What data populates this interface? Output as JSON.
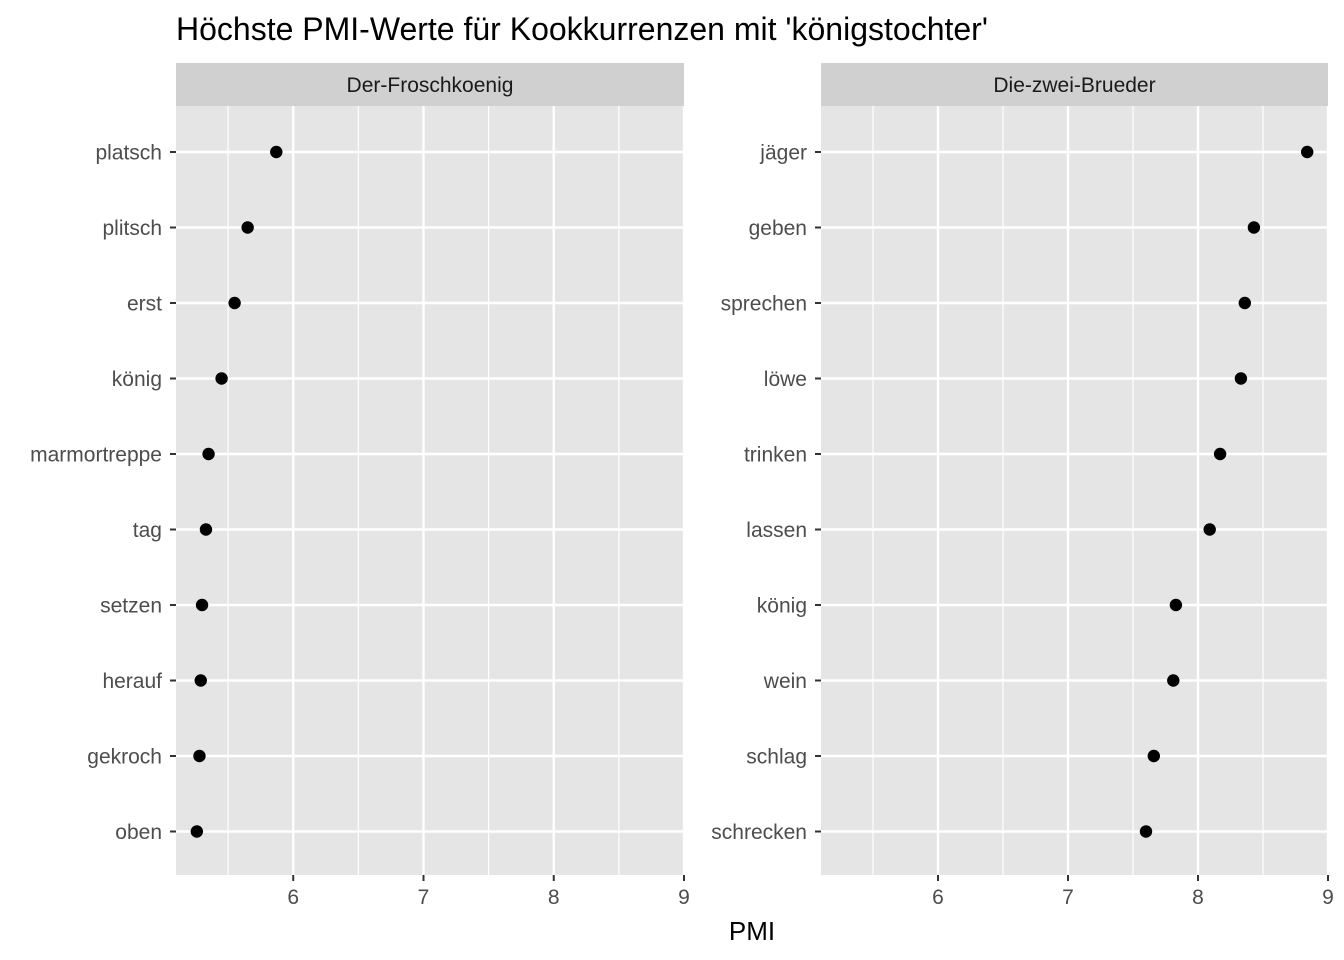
{
  "chart_data": {
    "type": "scatter",
    "title": "Höchste PMI-Werte für Kookkurrenzen mit 'königstochter'",
    "xlabel": "PMI",
    "ylabel": "",
    "xlim": [
      5.1,
      9.0
    ],
    "x_ticks": [
      "6",
      "7",
      "8",
      "9"
    ],
    "grid": true,
    "facets": [
      {
        "name": "Der-Froschkoenig",
        "categories": [
          "platsch",
          "plitsch",
          "erst",
          "könig",
          "marmortreppe",
          "tag",
          "setzen",
          "herauf",
          "gekroch",
          "oben"
        ],
        "values": [
          5.87,
          5.65,
          5.55,
          5.45,
          5.35,
          5.33,
          5.3,
          5.29,
          5.28,
          5.26
        ]
      },
      {
        "name": "Die-zwei-Brueder",
        "categories": [
          "jäger",
          "geben",
          "sprechen",
          "löwe",
          "trinken",
          "lassen",
          "könig",
          "wein",
          "schlag",
          "schrecken"
        ],
        "values": [
          8.84,
          8.43,
          8.36,
          8.33,
          8.17,
          8.09,
          7.83,
          7.81,
          7.66,
          7.6
        ]
      }
    ],
    "colors": {
      "panel_bg": "#e5e5e5",
      "strip_bg": "#d0d0d0",
      "grid": "#ffffff",
      "point": "#000000",
      "tick_text": "#4d4d4d"
    }
  }
}
